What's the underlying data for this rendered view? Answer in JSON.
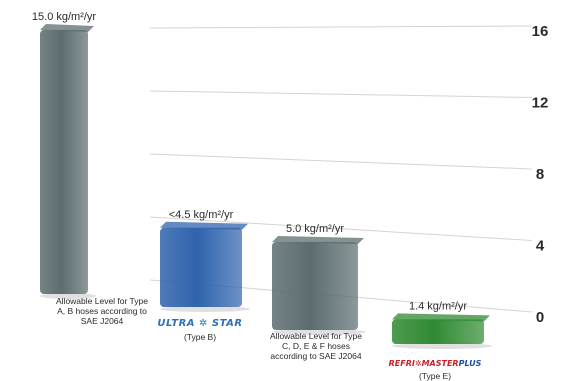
{
  "chart_data": {
    "type": "bar",
    "ylim": [
      0,
      16
    ],
    "yticks": [
      "16",
      "12",
      "8",
      "4",
      "0"
    ],
    "categories": [
      "Allowable Level for Type A, B hoses according to SAE J2064",
      "ULTRA STAR (Type B)",
      "Allowable Level for Type C, D, E & F hoses according to SAE J2064",
      "REFRI MASTER PLUS (Type E)"
    ],
    "values": [
      15.0,
      4.5,
      5.0,
      1.4
    ],
    "data_labels": [
      "15.0 kg/m²/yr",
      "<4.5 kg/m²/yr",
      "5.0 kg/m²/yr",
      "1.4 kg/m²/yr"
    ],
    "colors": [
      "#5c6d70",
      "#2f63ad",
      "#5c6d70",
      "#2f8a32"
    ]
  },
  "captions": {
    "bar1": "Allowable Level for Type A, B hoses according to SAE J2064",
    "bar2_brand": "ULTRA ✲ STAR",
    "bar2_type": "(Type B)",
    "bar3": "Allowable Level for Type C, D, E & F hoses according to SAE J2064",
    "bar4_brand_a": "REFRI✲MASTER",
    "bar4_brand_b": "PLUS",
    "bar4_type": "(Type E)"
  }
}
